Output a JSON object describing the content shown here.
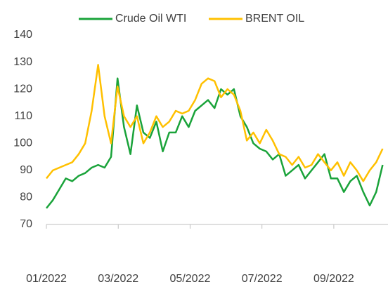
{
  "chart_data": {
    "type": "line",
    "x": [
      0,
      0.18,
      0.36,
      0.54,
      0.72,
      0.9,
      1.08,
      1.26,
      1.44,
      1.62,
      1.8,
      1.98,
      2.16,
      2.34,
      2.52,
      2.7,
      2.88,
      3.06,
      3.24,
      3.42,
      3.6,
      3.78,
      3.96,
      4.14,
      4.32,
      4.5,
      4.68,
      4.86,
      5.04,
      5.22,
      5.4,
      5.58,
      5.76,
      5.94,
      6.12,
      6.3,
      6.48,
      6.66,
      6.84,
      7.02,
      7.2,
      7.38,
      7.56,
      7.74,
      7.92,
      8.1,
      8.28,
      8.46,
      8.64,
      8.82,
      9,
      9.18,
      9.36
    ],
    "series": [
      {
        "name": "Crude Oil WTI",
        "color": "#1aa33a",
        "values": [
          76,
          79,
          83,
          87,
          86,
          88,
          89,
          91,
          92,
          91,
          95,
          124,
          106,
          96,
          114,
          104,
          102,
          108,
          97,
          104,
          104,
          110,
          106,
          112,
          114,
          116,
          113,
          120,
          118,
          120,
          110,
          106,
          100,
          98,
          97,
          94,
          96,
          88,
          90,
          92,
          87,
          90,
          93,
          96,
          87,
          87,
          82,
          86,
          88,
          82,
          77,
          82,
          92
        ]
      },
      {
        "name": "BRENT OIL",
        "color": "#ffc000",
        "values": [
          87,
          90,
          91,
          92,
          93,
          96,
          100,
          112,
          129,
          110,
          100,
          121,
          110,
          106,
          110,
          100,
          104,
          110,
          106,
          108,
          112,
          111,
          112,
          116,
          122,
          124,
          123,
          117,
          120,
          118,
          112,
          101,
          104,
          100,
          105,
          101,
          96,
          95,
          92,
          95,
          91,
          92,
          96,
          93,
          90,
          93,
          88,
          93,
          90,
          86,
          90,
          93,
          98
        ]
      }
    ],
    "xlim": [
      0,
      9.43
    ],
    "xticks": [
      {
        "value": 0,
        "label": "01/2022"
      },
      {
        "value": 2,
        "label": "03/2022"
      },
      {
        "value": 4,
        "label": "05/2022"
      },
      {
        "value": 6,
        "label": "07/2022"
      },
      {
        "value": 8,
        "label": "09/2022"
      }
    ],
    "ylim": [
      70,
      140
    ],
    "yticks": [
      70,
      80,
      90,
      100,
      110,
      120,
      130,
      140
    ],
    "grid": false,
    "legend": "top"
  }
}
